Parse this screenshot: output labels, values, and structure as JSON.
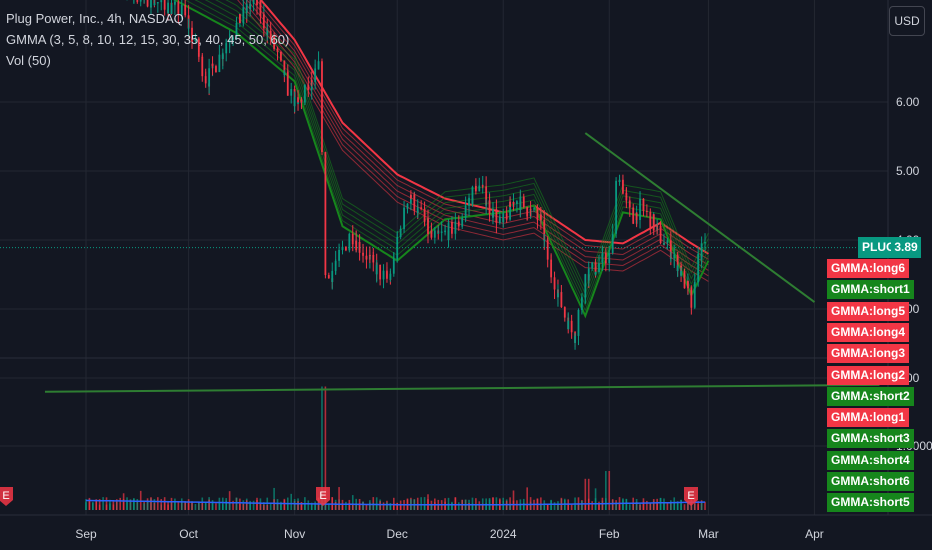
{
  "legend": {
    "title": "Plug Power, Inc., 4h, NASDAQ",
    "indicator": "GMMA (3, 5, 8, 10, 12, 15, 30, 35, 40, 45, 50, 60)",
    "volume": "Vol (50)"
  },
  "currency": "USD",
  "last_price": {
    "symbol": "PLUG",
    "value": "3.89"
  },
  "gmma_tags": [
    {
      "label": "GMMA:long6",
      "kind": "long"
    },
    {
      "label": "GMMA:short1",
      "kind": "short"
    },
    {
      "label": "GMMA:long5",
      "kind": "long"
    },
    {
      "label": "GMMA:long4",
      "kind": "long"
    },
    {
      "label": "GMMA:long3",
      "kind": "long"
    },
    {
      "label": "GMMA:long2",
      "kind": "long"
    },
    {
      "label": "GMMA:short2",
      "kind": "short"
    },
    {
      "label": "GMMA:long1",
      "kind": "long"
    },
    {
      "label": "GMMA:short3",
      "kind": "short"
    },
    {
      "label": "GMMA:short4",
      "kind": "short"
    },
    {
      "label": "GMMA:short6",
      "kind": "short"
    },
    {
      "label": "GMMA:short5",
      "kind": "short"
    }
  ],
  "colors": {
    "background": "#131722",
    "up": "#089981",
    "down": "#f23645",
    "gmma_short": "#16861c",
    "gmma_long": "#f23645",
    "trendline": "#2e7d32",
    "volume_ma": "#2962ff",
    "grid": "#232732"
  },
  "chart_data": {
    "type": "candlestick",
    "title": "Plug Power, Inc., 4h, NASDAQ",
    "x_ticks": [
      "Sep",
      "Oct",
      "Nov",
      "Dec",
      "2024",
      "Feb",
      "Mar",
      "Apr"
    ],
    "y_ticks": [
      {
        "value": 6.0,
        "label": "6.00"
      },
      {
        "value": 5.0,
        "label": "5.00"
      },
      {
        "value": 4.0,
        "label": "4.00"
      },
      {
        "value": 3.0,
        "label": "3.00"
      },
      {
        "value": 2.0,
        "label": "2.00"
      },
      {
        "value": 1.0,
        "label": "1.0000"
      }
    ],
    "earnings_markers": [
      "E",
      "E",
      "E",
      "E"
    ],
    "last_close": 3.89,
    "price_path": [
      [
        "2023-09-01",
        7.8
      ],
      [
        "2023-09-15",
        7.6
      ],
      [
        "2023-09-30",
        7.3
      ],
      [
        "2023-10-07",
        6.3
      ],
      [
        "2023-10-14",
        7.0
      ],
      [
        "2023-10-21",
        7.5
      ],
      [
        "2023-10-28",
        6.6
      ],
      [
        "2023-11-02",
        5.9
      ],
      [
        "2023-11-09",
        6.5
      ],
      [
        "2023-11-11",
        3.4
      ],
      [
        "2023-11-18",
        4.1
      ],
      [
        "2023-11-25",
        3.6
      ],
      [
        "2023-11-29",
        3.4
      ],
      [
        "2023-12-05",
        4.7
      ],
      [
        "2023-12-12",
        4.0
      ],
      [
        "2023-12-19",
        4.2
      ],
      [
        "2023-12-25",
        4.8
      ],
      [
        "2024-01-01",
        4.2
      ],
      [
        "2024-01-05",
        4.6
      ],
      [
        "2024-01-12",
        4.3
      ],
      [
        "2024-01-17",
        3.3
      ],
      [
        "2024-01-22",
        2.6
      ],
      [
        "2024-01-26",
        3.5
      ],
      [
        "2024-02-02",
        3.8
      ],
      [
        "2024-02-04",
        5.0
      ],
      [
        "2024-02-08",
        4.3
      ],
      [
        "2024-02-11",
        4.5
      ],
      [
        "2024-02-16",
        4.1
      ],
      [
        "2024-02-22",
        3.6
      ],
      [
        "2024-02-26",
        3.0
      ],
      [
        "2024-02-28",
        3.8
      ],
      [
        "2024-03-01",
        3.89
      ]
    ],
    "gmma_long_path": [
      [
        "2023-09-15",
        8.5
      ],
      [
        "2023-10-15",
        7.9
      ],
      [
        "2023-11-01",
        6.9
      ],
      [
        "2023-11-15",
        5.7
      ],
      [
        "2023-12-01",
        4.95
      ],
      [
        "2023-12-15",
        4.6
      ],
      [
        "2024-01-01",
        4.4
      ],
      [
        "2024-01-10",
        4.5
      ],
      [
        "2024-01-25",
        4.0
      ],
      [
        "2024-02-05",
        3.95
      ],
      [
        "2024-02-16",
        4.25
      ],
      [
        "2024-02-25",
        3.95
      ],
      [
        "2024-03-01",
        3.8
      ]
    ],
    "gmma_short_path": [
      [
        "2023-09-15",
        7.8
      ],
      [
        "2023-10-15",
        7.0
      ],
      [
        "2023-11-01",
        6.3
      ],
      [
        "2023-11-15",
        4.2
      ],
      [
        "2023-12-01",
        3.7
      ],
      [
        "2023-12-15",
        4.3
      ],
      [
        "2024-01-01",
        4.4
      ],
      [
        "2024-01-10",
        4.5
      ],
      [
        "2024-01-25",
        2.9
      ],
      [
        "2024-02-05",
        4.4
      ],
      [
        "2024-02-16",
        4.3
      ],
      [
        "2024-02-25",
        3.2
      ],
      [
        "2024-03-01",
        3.7
      ]
    ],
    "trendlines": [
      {
        "from": [
          "2024-01-25",
          5.55
        ],
        "to": [
          "2024-04-01",
          3.1
        ]
      },
      {
        "from": [
          "2023-08-20",
          1.8
        ],
        "to": [
          "2024-04-20",
          1.9
        ]
      }
    ],
    "volume_spikes": [
      [
        "2023-11-10",
        0.95
      ],
      [
        "2024-02-01",
        0.3
      ],
      [
        "2024-01-26",
        0.24
      ]
    ]
  }
}
